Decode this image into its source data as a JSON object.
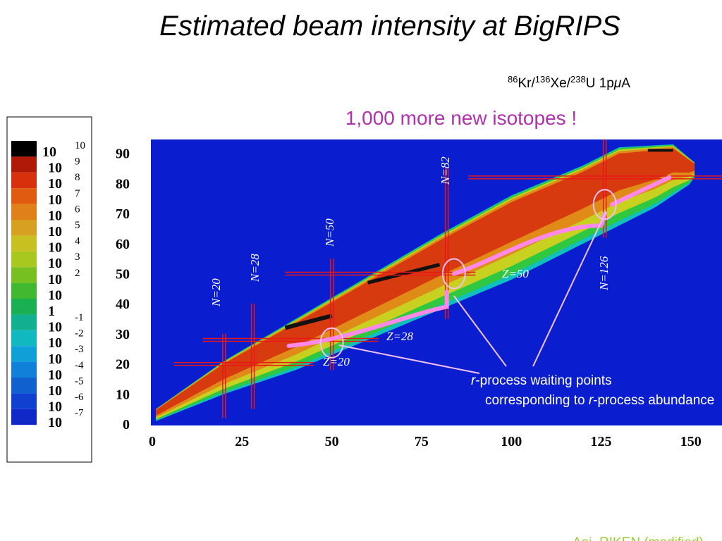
{
  "title": "Estimated beam intensity at BigRIPS",
  "beam": [
    {
      "sup": "86",
      "base": "Kr/"
    },
    {
      "sup": "136",
      "base": "Xe/"
    },
    {
      "sup": "238",
      "base": "U  1p"
    },
    {
      "base": "μ"
    },
    {
      "base": "A"
    }
  ],
  "headline": "1,000 more new isotopes !",
  "color_scale": [
    {
      "base": "10",
      "exp": "10"
    },
    {
      "base": "10",
      "exp": "9"
    },
    {
      "base": "10",
      "exp": "8"
    },
    {
      "base": "10",
      "exp": "7"
    },
    {
      "base": "10",
      "exp": "6"
    },
    {
      "base": "10",
      "exp": "5"
    },
    {
      "base": "10",
      "exp": "4"
    },
    {
      "base": "10",
      "exp": "3"
    },
    {
      "base": "10",
      "exp": "2"
    },
    {
      "base": "10"
    },
    {
      "base": "1"
    },
    {
      "base": "10",
      "exp": "-1"
    },
    {
      "base": "10",
      "exp": "-2"
    },
    {
      "base": "10",
      "exp": "-3"
    },
    {
      "base": "10",
      "exp": "-4"
    },
    {
      "base": "10",
      "exp": "-5"
    },
    {
      "base": "10",
      "exp": "-6"
    },
    {
      "base": "10",
      "exp": "-7"
    }
  ],
  "figure": {
    "x_ticks": [
      "0",
      "25",
      "50",
      "75",
      "100",
      "125",
      "150"
    ],
    "y_ticks": [
      "0",
      "10",
      "20",
      "30",
      "40",
      "50",
      "60",
      "70",
      "80",
      "90"
    ],
    "magic_labels": [
      "N=20",
      "N=28",
      "N=50",
      "N=82",
      "N=126",
      "Z=20",
      "Z=28",
      "Z=50"
    ]
  },
  "annotation": {
    "line1": [
      "r",
      "-process waiting points"
    ],
    "line2": [
      "corresponding to ",
      "r",
      "-process abundance"
    ]
  },
  "credit": "Aoi, RIKEN (modified)"
}
